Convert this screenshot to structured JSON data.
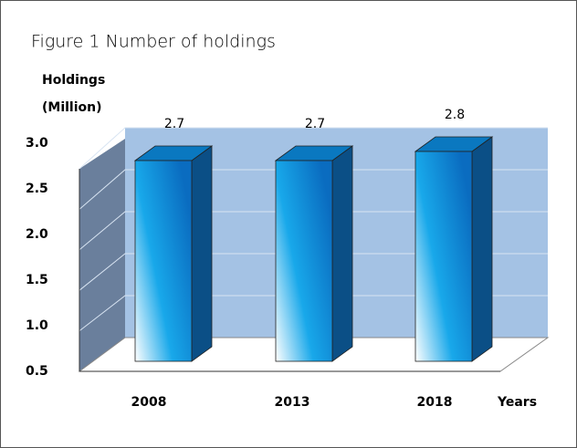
{
  "chart_data": {
    "type": "bar3d",
    "title": "Figure  1   Number of holdings",
    "y_label_lines": [
      "Holdings",
      "(Million)"
    ],
    "x_label": "Years",
    "categories": [
      "2008",
      "2013",
      "2018"
    ],
    "values": [
      2.7,
      2.7,
      2.8
    ],
    "value_labels": [
      "2.7",
      "2.7",
      "2.8"
    ],
    "color": "#0a8fd8",
    "ylim": [
      0.5,
      3.0
    ],
    "yticks": [
      0.5,
      {
        "value": 1,
        "label": "1.0"
      },
      1.5,
      {
        "value": 2,
        "label": "2.0"
      },
      2.5,
      {
        "value": 3,
        "label": "3.0"
      }
    ],
    "grid": true
  }
}
